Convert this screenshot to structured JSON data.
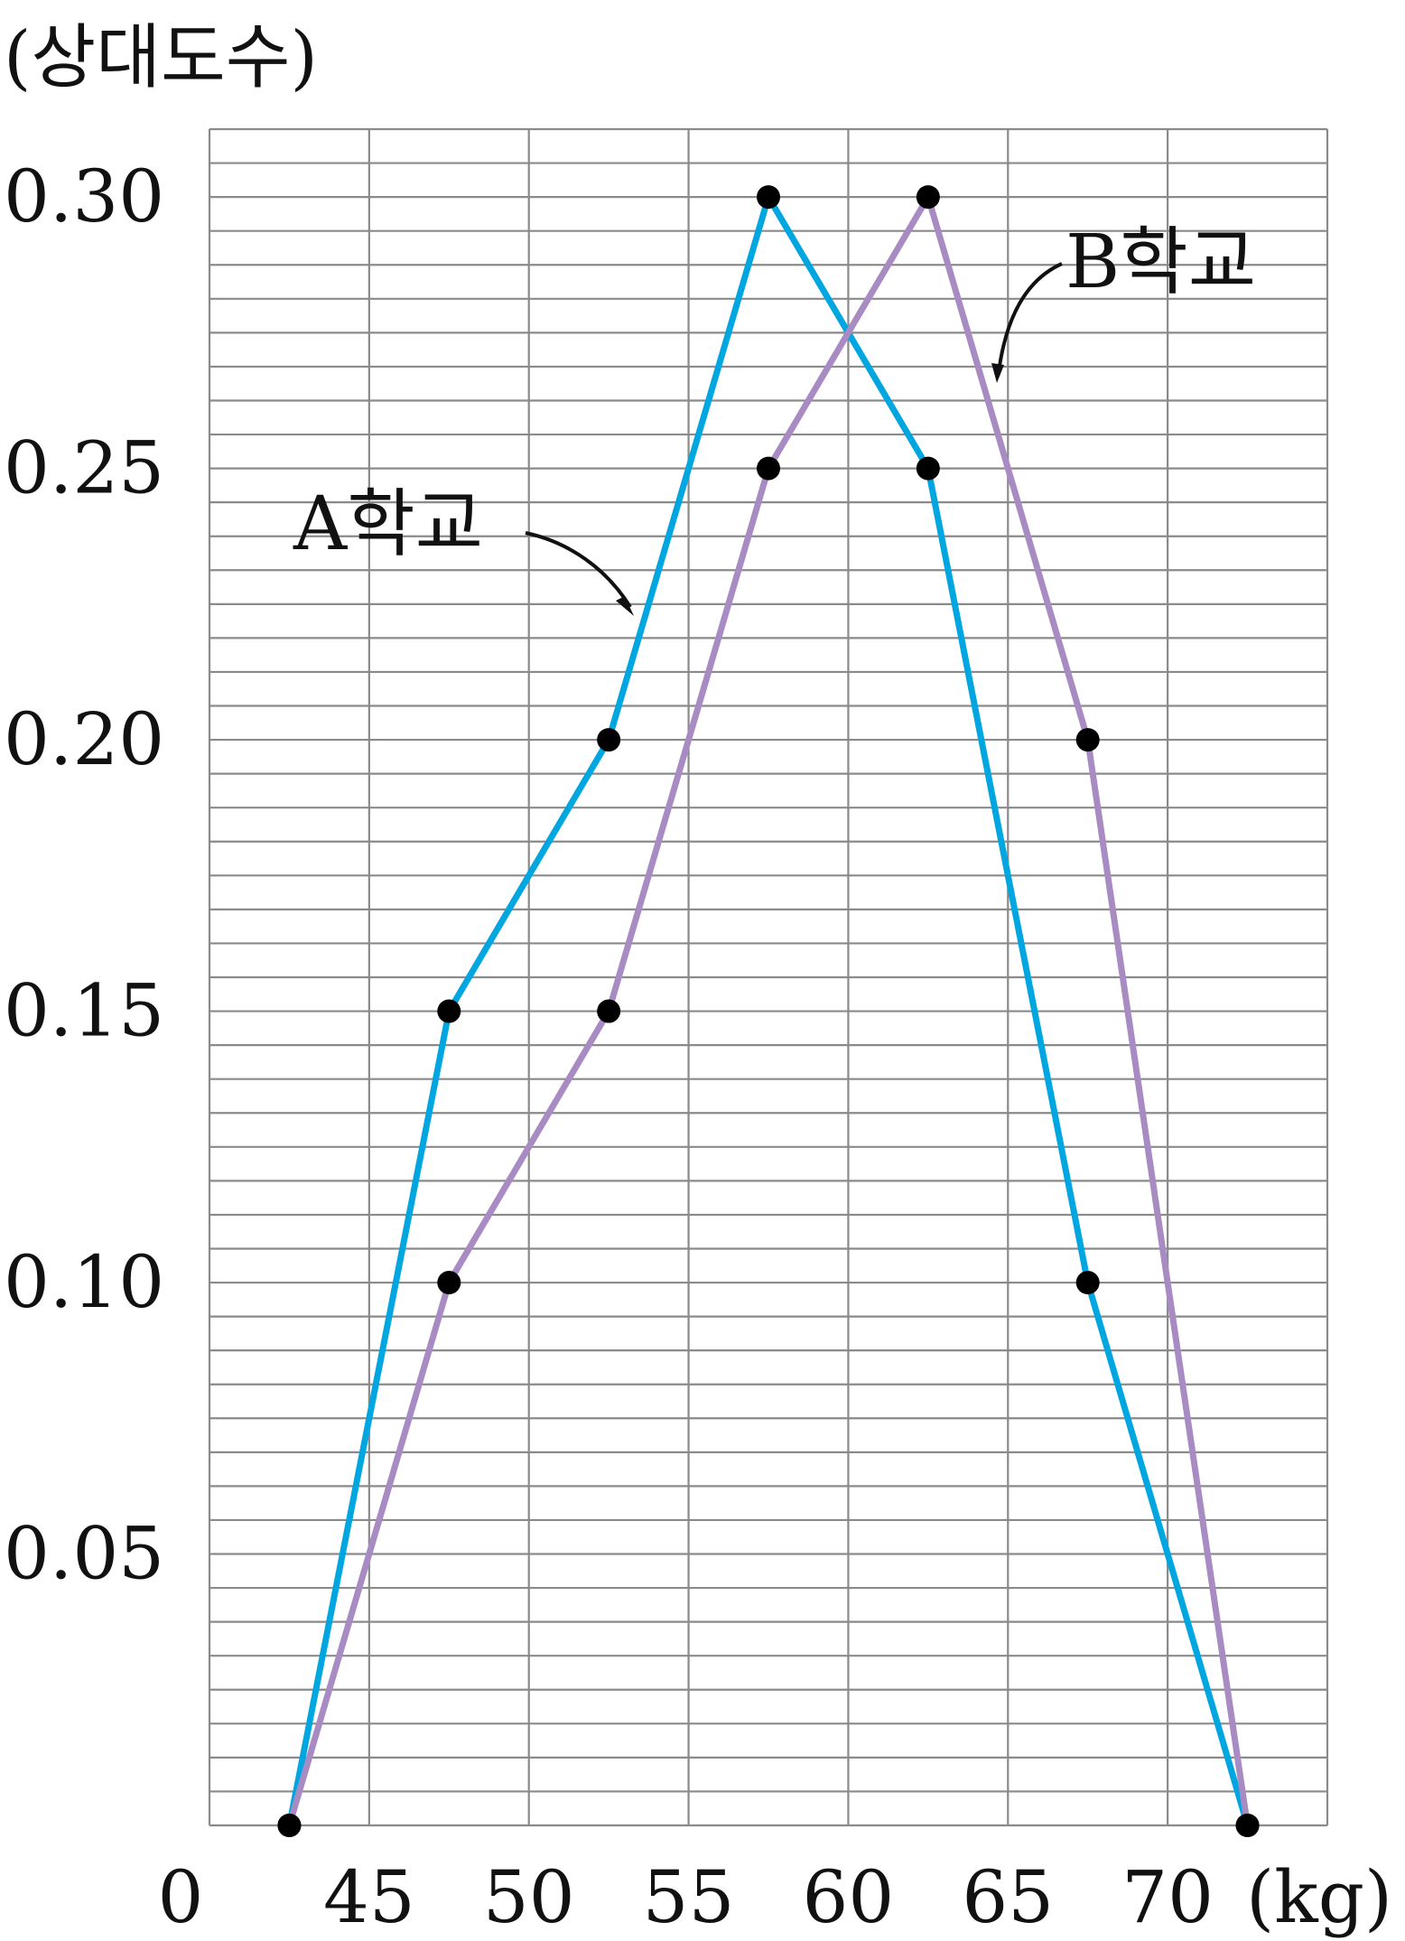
{
  "chart_data": {
    "type": "line",
    "title": "",
    "xlabel": "(kg)",
    "ylabel": "(상대도수)",
    "origin_label": "0",
    "x_ticks": [
      "45",
      "50",
      "55",
      "60",
      "65",
      "70"
    ],
    "y_ticks": [
      "0.30",
      "0.25",
      "0.20",
      "0.15",
      "0.10",
      "0.05"
    ],
    "xlim": [
      40,
      75
    ],
    "ylim": [
      0,
      0.3
    ],
    "grid": true,
    "series": [
      {
        "name": "A학교",
        "color": "#00A6E0",
        "x": [
          42.5,
          47.5,
          52.5,
          57.5,
          62.5,
          67.5,
          72.5
        ],
        "y": [
          0,
          0.15,
          0.2,
          0.3,
          0.25,
          0.1,
          0
        ]
      },
      {
        "name": "B학교",
        "color": "#A98BC4",
        "x": [
          42.5,
          47.5,
          52.5,
          57.5,
          62.5,
          67.5,
          72.5
        ],
        "y": [
          0,
          0.1,
          0.15,
          0.25,
          0.3,
          0.2,
          0
        ]
      }
    ]
  }
}
